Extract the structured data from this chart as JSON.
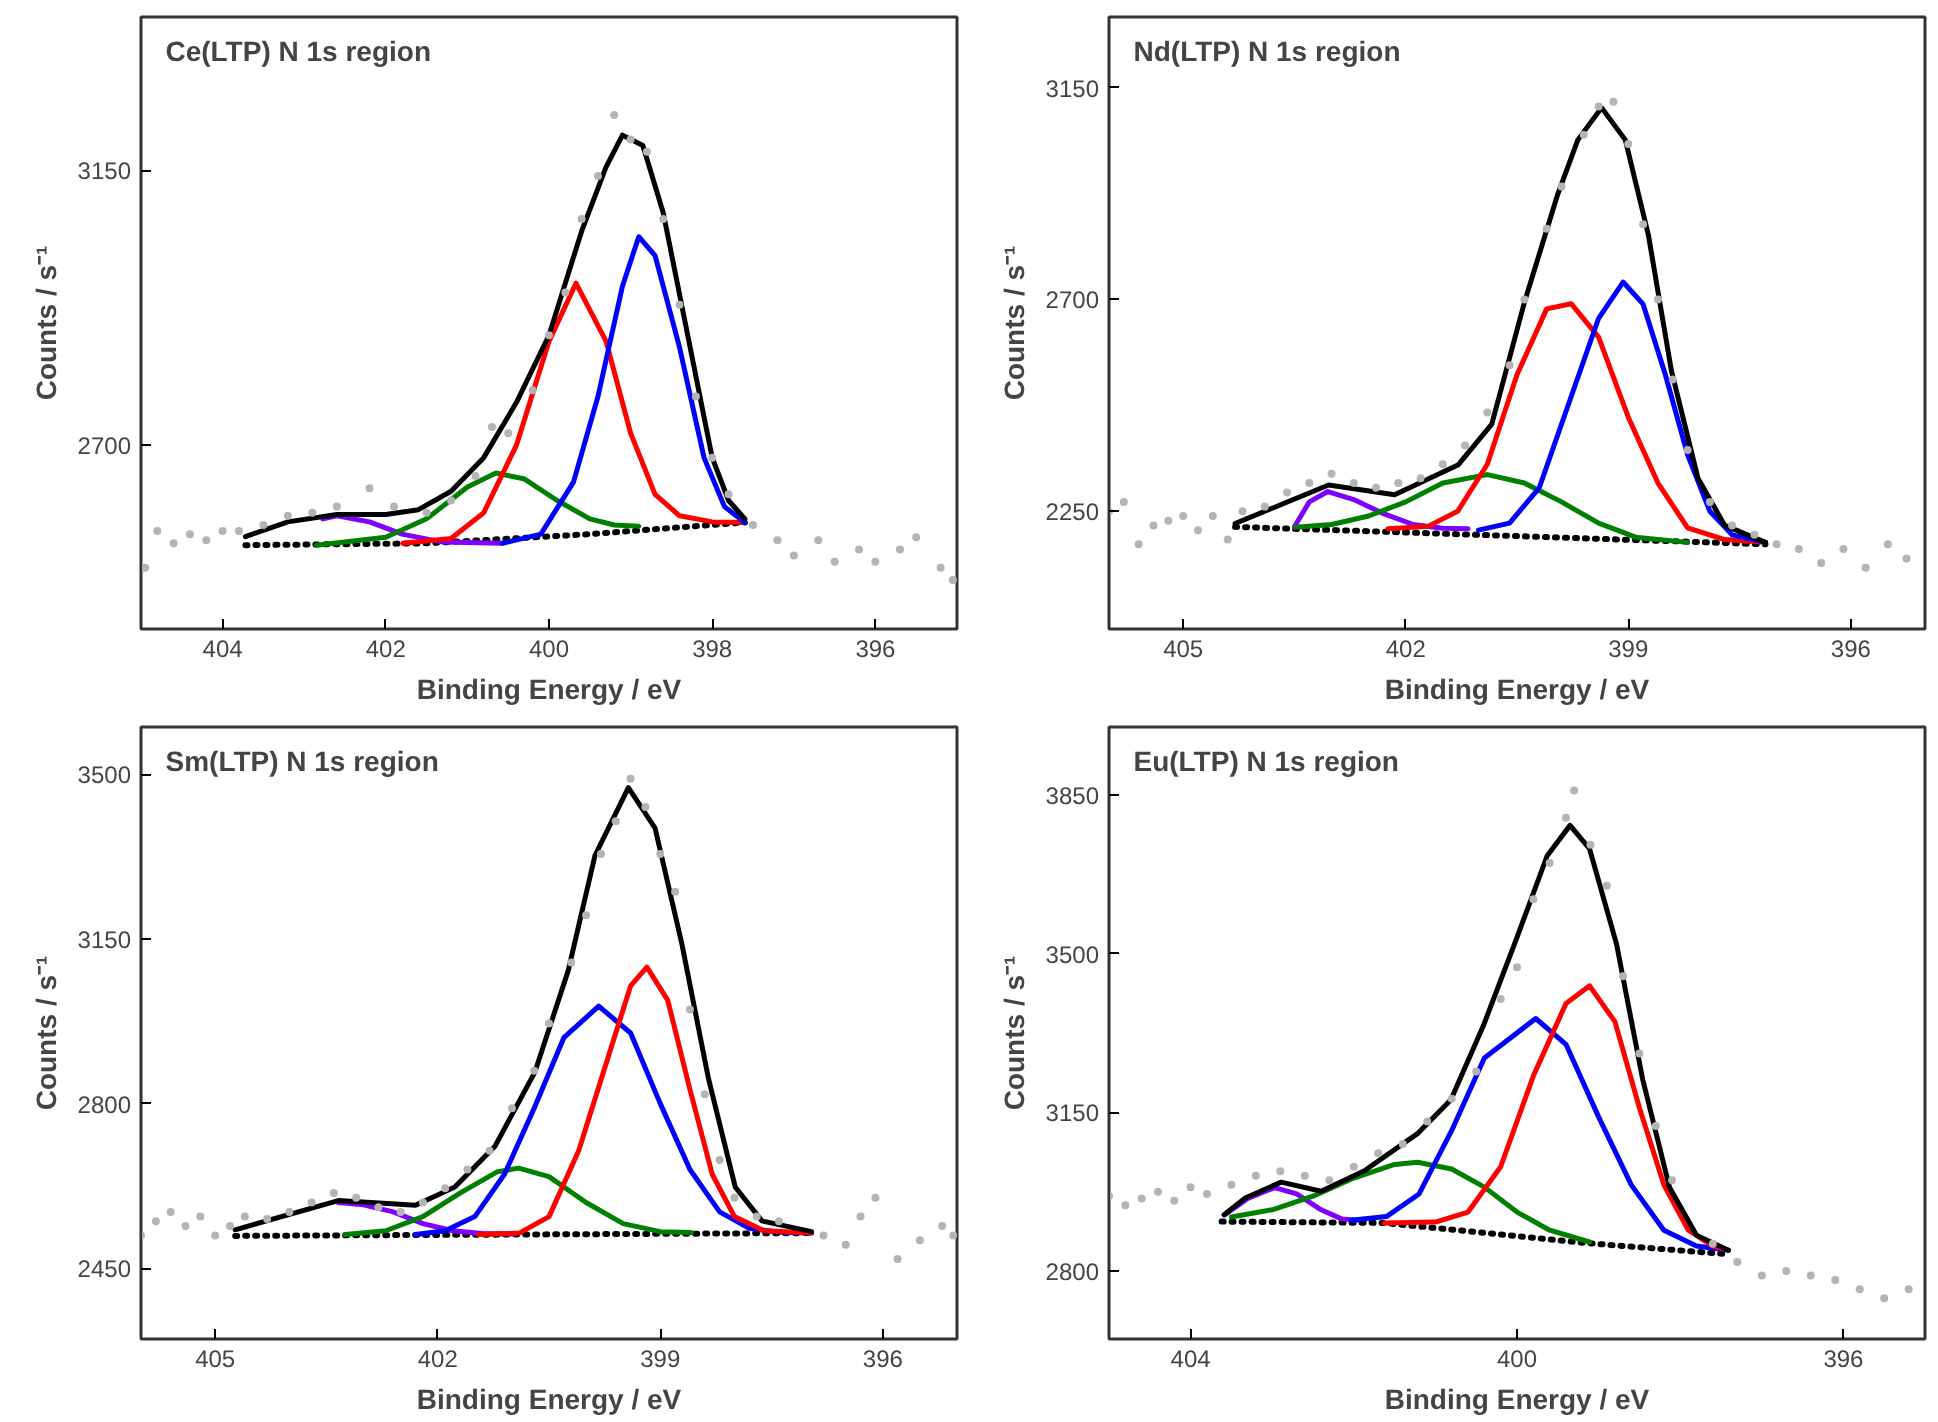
{
  "chart_data": [
    {
      "type": "line",
      "title": "Ce(LTP) N 1s region",
      "xlabel": "Binding Energy / eV",
      "ylabel": "Counts / s⁻¹",
      "xlim": [
        405,
        395
      ],
      "ylim": [
        2400,
        3400
      ],
      "grid": false,
      "xticks": [
        404,
        402,
        400,
        398,
        396
      ],
      "yticks": [
        2700,
        3150
      ],
      "series": [
        {
          "type": "scatter",
          "marker": "circle",
          "color": "#b4b4b4",
          "x": [
            404.95,
            404.8,
            404.6,
            404.4,
            404.2,
            404.0,
            403.8,
            403.5,
            403.2,
            402.9,
            402.6,
            402.2,
            401.9,
            401.5,
            401.2,
            400.9,
            400.7,
            400.5,
            400.2,
            400.0,
            399.8,
            399.6,
            399.4,
            399.2,
            399.0,
            398.8,
            398.6,
            398.4,
            398.2,
            398.0,
            397.8,
            397.5,
            397.2,
            397.0,
            396.7,
            396.5,
            396.2,
            396.0,
            395.7,
            395.5,
            395.2,
            395.05
          ],
          "values": [
            2500,
            2560,
            2540,
            2555,
            2545,
            2560,
            2560,
            2570,
            2585,
            2590,
            2600,
            2630,
            2600,
            2590,
            2610,
            2650,
            2730,
            2720,
            2790,
            2880,
            2950,
            3070,
            3140,
            3240,
            3200,
            3180,
            3070,
            2930,
            2780,
            2680,
            2620,
            2570,
            2545,
            2520,
            2545,
            2510,
            2530,
            2510,
            2530,
            2550,
            2500,
            2480
          ]
        },
        {
          "type": "line",
          "line_style": "dotted",
          "color": "#000000",
          "x": [
            403.72,
            401.5,
            399.5,
            397.6
          ],
          "values": [
            2537,
            2540,
            2555,
            2574
          ]
        },
        {
          "type": "line",
          "color": "#8000ff",
          "x": [
            402.77,
            402.6,
            402.2,
            401.8,
            401.3,
            400.57
          ],
          "values": [
            2580,
            2585,
            2575,
            2555,
            2542,
            2540
          ]
        },
        {
          "type": "line",
          "color": "#008000",
          "x": [
            402.85,
            402.0,
            401.5,
            401.0,
            400.65,
            400.3,
            399.9,
            399.5,
            399.2,
            398.9
          ],
          "values": [
            2537,
            2550,
            2580,
            2632,
            2655,
            2645,
            2610,
            2580,
            2570,
            2568
          ]
        },
        {
          "type": "line",
          "color": "#ff0000",
          "x": [
            401.79,
            401.2,
            400.8,
            400.4,
            400.0,
            399.67,
            399.3,
            399.0,
            398.7,
            398.4,
            398.0,
            397.6
          ],
          "values": [
            2540,
            2548,
            2590,
            2700,
            2870,
            2965,
            2870,
            2720,
            2620,
            2585,
            2575,
            2574
          ]
        },
        {
          "type": "line",
          "color": "#0000ff",
          "x": [
            400.57,
            400.1,
            399.7,
            399.4,
            399.1,
            398.9,
            398.7,
            398.4,
            398.1,
            397.85,
            397.6
          ],
          "values": [
            2540,
            2555,
            2640,
            2780,
            2960,
            3041,
            3010,
            2860,
            2680,
            2600,
            2574
          ]
        },
        {
          "type": "line",
          "color": "#000000",
          "x": [
            403.72,
            403.2,
            402.6,
            402.0,
            401.6,
            401.2,
            400.8,
            400.4,
            400.0,
            399.6,
            399.3,
            399.1,
            398.85,
            398.6,
            398.3,
            398.0,
            397.8,
            397.6
          ],
          "values": [
            2551,
            2575,
            2587,
            2587,
            2595,
            2625,
            2680,
            2770,
            2880,
            3050,
            3155,
            3207,
            3190,
            3080,
            2880,
            2680,
            2610,
            2580
          ]
        }
      ]
    },
    {
      "type": "line",
      "title": "Nd(LTP) N 1s region",
      "xlabel": "Binding Energy / eV",
      "ylabel": "Counts / s⁻¹",
      "xlim": [
        406,
        395
      ],
      "ylim": [
        2000,
        3300
      ],
      "grid": false,
      "xticks": [
        405,
        402,
        399,
        396
      ],
      "yticks": [
        2250,
        2700,
        3150
      ],
      "series": [
        {
          "type": "scatter",
          "marker": "circle",
          "color": "#b4b4b4",
          "x": [
            406.0,
            405.8,
            405.6,
            405.4,
            405.2,
            405.0,
            404.8,
            404.6,
            404.4,
            404.2,
            403.9,
            403.6,
            403.3,
            403.0,
            402.7,
            402.4,
            402.1,
            401.8,
            401.5,
            401.2,
            400.9,
            400.6,
            400.4,
            400.1,
            399.9,
            399.6,
            399.4,
            399.2,
            399.0,
            398.8,
            398.6,
            398.4,
            398.2,
            397.9,
            397.6,
            397.3,
            397.0,
            396.7,
            396.4,
            396.1,
            395.8,
            395.5,
            395.25
          ],
          "values": [
            2250,
            2270,
            2180,
            2220,
            2230,
            2240,
            2210,
            2240,
            2190,
            2250,
            2260,
            2290,
            2310,
            2330,
            2310,
            2300,
            2310,
            2320,
            2350,
            2390,
            2460,
            2560,
            2700,
            2850,
            2940,
            3050,
            3110,
            3120,
            3030,
            2860,
            2700,
            2530,
            2380,
            2270,
            2220,
            2200,
            2180,
            2170,
            2140,
            2170,
            2130,
            2180,
            2150
          ]
        },
        {
          "type": "line",
          "line_style": "dotted",
          "color": "#000000",
          "x": [
            404.3,
            397.15
          ],
          "values": [
            2217,
            2180
          ]
        },
        {
          "type": "line",
          "color": "#8000ff",
          "x": [
            403.5,
            403.3,
            403.05,
            402.7,
            402.3,
            401.9,
            401.5,
            401.16
          ],
          "values": [
            2217,
            2270,
            2292,
            2275,
            2245,
            2222,
            2214,
            2213
          ]
        },
        {
          "type": "line",
          "color": "#008000",
          "x": [
            403.49,
            403.0,
            402.5,
            402.0,
            401.5,
            400.9,
            400.4,
            399.9,
            399.4,
            398.9,
            398.2
          ],
          "values": [
            2216,
            2222,
            2240,
            2270,
            2310,
            2328,
            2310,
            2270,
            2225,
            2195,
            2184
          ]
        },
        {
          "type": "line",
          "color": "#ff0000",
          "x": [
            402.24,
            401.7,
            401.3,
            400.9,
            400.5,
            400.1,
            399.77,
            399.4,
            399.0,
            398.6,
            398.2,
            397.7,
            397.15
          ],
          "values": [
            2213,
            2218,
            2250,
            2350,
            2540,
            2680,
            2691,
            2620,
            2450,
            2310,
            2215,
            2190,
            2184
          ]
        },
        {
          "type": "line",
          "color": "#0000ff",
          "x": [
            401.02,
            400.6,
            400.2,
            399.8,
            399.4,
            399.07,
            398.8,
            398.5,
            398.2,
            397.9,
            397.6,
            397.15
          ],
          "values": [
            2210,
            2225,
            2300,
            2480,
            2660,
            2737,
            2690,
            2540,
            2370,
            2250,
            2200,
            2184
          ]
        },
        {
          "type": "line",
          "color": "#000000",
          "x": [
            404.3,
            403.04,
            402.15,
            401.29,
            400.84,
            400.4,
            399.95,
            399.68,
            399.36,
            399.04,
            398.73,
            398.42,
            398.06,
            397.7,
            397.15
          ],
          "values": [
            2224,
            2306,
            2285,
            2349,
            2435,
            2694,
            2924,
            3039,
            3107,
            3039,
            2838,
            2550,
            2320,
            2220,
            2184
          ]
        }
      ]
    },
    {
      "type": "line",
      "title": "Sm(LTP) N 1s region",
      "xlabel": "Binding Energy / eV",
      "ylabel": "Counts / s⁻¹",
      "xlim": [
        406,
        395
      ],
      "ylim": [
        2300,
        3600
      ],
      "grid": false,
      "xticks": [
        405,
        402,
        399,
        396
      ],
      "yticks": [
        2450,
        2800,
        3150,
        3500
      ],
      "series": [
        {
          "type": "scatter",
          "marker": "circle",
          "color": "#b4b4b4",
          "x": [
            406.0,
            405.8,
            405.6,
            405.4,
            405.2,
            405.0,
            404.8,
            404.6,
            404.3,
            404.0,
            403.7,
            403.4,
            403.1,
            402.8,
            402.5,
            402.2,
            401.9,
            401.6,
            401.3,
            401.0,
            400.7,
            400.5,
            400.2,
            400.0,
            399.8,
            399.6,
            399.4,
            399.2,
            399.0,
            398.8,
            398.6,
            398.4,
            398.2,
            398.0,
            397.7,
            397.4,
            396.8,
            396.5,
            396.3,
            396.1,
            395.8,
            395.5,
            395.2,
            395.05
          ],
          "values": [
            2520,
            2550,
            2570,
            2540,
            2560,
            2520,
            2540,
            2560,
            2555,
            2570,
            2590,
            2610,
            2600,
            2580,
            2570,
            2590,
            2620,
            2660,
            2700,
            2790,
            2870,
            2970,
            3100,
            3200,
            3330,
            3400,
            3490,
            3430,
            3330,
            3250,
            3000,
            2820,
            2680,
            2600,
            2560,
            2550,
            2520,
            2500,
            2560,
            2600,
            2470,
            2510,
            2540,
            2520
          ]
        },
        {
          "type": "line",
          "line_style": "dotted",
          "color": "#000000",
          "x": [
            404.73,
            396.96
          ],
          "values": [
            2519,
            2525
          ]
        },
        {
          "type": "line",
          "color": "#8000ff",
          "x": [
            403.34,
            403.0,
            402.6,
            402.2,
            401.8,
            401.4,
            400.96
          ],
          "values": [
            2590,
            2585,
            2570,
            2545,
            2530,
            2524,
            2523
          ]
        },
        {
          "type": "line",
          "color": "#008000",
          "x": [
            403.25,
            402.7,
            402.2,
            401.7,
            401.2,
            400.91,
            400.5,
            400.0,
            399.5,
            399.0,
            398.58
          ],
          "values": [
            2522,
            2530,
            2560,
            2610,
            2655,
            2663,
            2645,
            2590,
            2545,
            2528,
            2526
          ]
        },
        {
          "type": "line",
          "color": "#0000ff",
          "x": [
            402.3,
            401.9,
            401.5,
            401.1,
            400.7,
            400.3,
            399.83,
            399.4,
            399.0,
            398.6,
            398.2,
            397.8,
            397.4,
            396.96
          ],
          "values": [
            2522,
            2530,
            2560,
            2650,
            2790,
            2940,
            3007,
            2950,
            2800,
            2660,
            2570,
            2535,
            2527,
            2525
          ]
        },
        {
          "type": "line",
          "color": "#ff0000",
          "x": [
            401.45,
            400.9,
            400.5,
            400.1,
            399.7,
            399.4,
            399.18,
            398.9,
            398.6,
            398.3,
            398.0,
            397.6,
            396.96
          ],
          "values": [
            2522,
            2525,
            2560,
            2700,
            2900,
            3050,
            3090,
            3020,
            2830,
            2650,
            2560,
            2530,
            2525
          ]
        },
        {
          "type": "line",
          "color": "#000000",
          "x": [
            404.73,
            403.34,
            402.3,
            401.77,
            401.23,
            400.69,
            400.24,
            399.88,
            399.43,
            399.07,
            398.71,
            398.35,
            397.99,
            397.63,
            396.96
          ],
          "values": [
            2532,
            2594,
            2584,
            2623,
            2709,
            2867,
            3083,
            3327,
            3471,
            3385,
            3140,
            2853,
            2623,
            2551,
            2528
          ]
        }
      ]
    },
    {
      "type": "line",
      "title": "Eu(LTP) N 1s region",
      "xlabel": "Binding Energy / eV",
      "ylabel": "Counts / s⁻¹",
      "xlim": [
        405,
        395
      ],
      "ylim": [
        2650,
        4000
      ],
      "grid": false,
      "xticks": [
        404,
        400,
        396
      ],
      "yticks": [
        2800,
        3150,
        3500,
        3850
      ],
      "series": [
        {
          "type": "scatter",
          "marker": "circle",
          "color": "#b4b4b4",
          "x": [
            405.0,
            404.8,
            404.6,
            404.4,
            404.2,
            404.0,
            403.8,
            403.5,
            403.2,
            402.9,
            402.6,
            402.3,
            402.0,
            401.7,
            401.4,
            401.1,
            400.8,
            400.5,
            400.2,
            400.0,
            399.8,
            399.6,
            399.4,
            399.3,
            399.1,
            398.9,
            398.7,
            398.5,
            398.3,
            398.1,
            397.6,
            397.3,
            397.0,
            396.7,
            396.4,
            396.1,
            395.8,
            395.5,
            395.2
          ],
          "values": [
            2965,
            2945,
            2960,
            2975,
            2955,
            2985,
            2970,
            2990,
            3010,
            3020,
            3010,
            3000,
            3030,
            3060,
            3080,
            3130,
            3180,
            3240,
            3400,
            3470,
            3620,
            3700,
            3800,
            3860,
            3740,
            3650,
            3450,
            3280,
            3120,
            3000,
            2860,
            2820,
            2790,
            2800,
            2790,
            2780,
            2760,
            2740,
            2760
          ]
        },
        {
          "type": "line",
          "line_style": "dotted",
          "color": "#000000",
          "x": [
            403.62,
            401.63,
            399.11,
            397.41
          ],
          "values": [
            2909,
            2906,
            2861,
            2837
          ]
        },
        {
          "type": "line",
          "color": "#8000ff",
          "x": [
            403.58,
            403.3,
            402.97,
            402.7,
            402.4,
            402.15,
            401.95
          ],
          "values": [
            2924,
            2960,
            2984,
            2970,
            2935,
            2915,
            2912
          ]
        },
        {
          "type": "line",
          "color": "#008000",
          "x": [
            403.5,
            403.0,
            402.5,
            402.0,
            401.5,
            401.22,
            400.8,
            400.4,
            400.0,
            399.6,
            399.11
          ],
          "values": [
            2919,
            2935,
            2965,
            3005,
            3035,
            3040,
            3025,
            2985,
            2930,
            2890,
            2864
          ]
        },
        {
          "type": "line",
          "color": "#0000ff",
          "x": [
            402.03,
            401.6,
            401.2,
            400.8,
            400.4,
            399.77,
            399.4,
            399.0,
            398.6,
            398.2,
            397.8,
            397.41
          ],
          "values": [
            2912,
            2920,
            2970,
            3110,
            3270,
            3357,
            3300,
            3140,
            2990,
            2890,
            2855,
            2846
          ]
        },
        {
          "type": "line",
          "color": "#ff0000",
          "x": [
            401.63,
            401.0,
            400.6,
            400.2,
            399.8,
            399.4,
            399.11,
            398.8,
            398.5,
            398.2,
            397.9,
            397.6,
            397.41
          ],
          "values": [
            2906,
            2908,
            2930,
            3030,
            3230,
            3390,
            3429,
            3350,
            3160,
            2990,
            2890,
            2855,
            2846
          ]
        },
        {
          "type": "line",
          "color": "#000000",
          "x": [
            403.59,
            403.33,
            402.89,
            402.4,
            401.87,
            401.22,
            400.81,
            400.41,
            400.0,
            399.63,
            399.35,
            399.11,
            398.78,
            398.46,
            398.13,
            397.8,
            397.41
          ],
          "values": [
            2924,
            2961,
            2996,
            2976,
            3021,
            3103,
            3178,
            3342,
            3536,
            3716,
            3783,
            3731,
            3521,
            3223,
            2984,
            2879,
            2846
          ]
        }
      ]
    }
  ]
}
